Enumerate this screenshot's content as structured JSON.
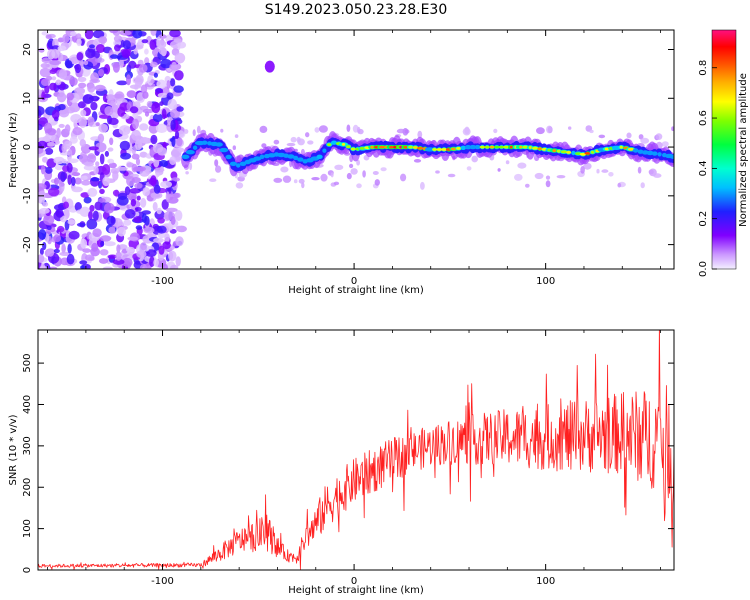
{
  "title": "S149.2023.050.23.28.E30",
  "colors": {
    "snr_line": "#ff2020",
    "ridge_low": "#5500ff",
    "ridge_high": "#ff0000",
    "noise": "#7a2cff"
  },
  "chart_data": [
    {
      "type": "heatmap",
      "xlabel": "Height of straight line (km)",
      "ylabel": "Frequency (Hz)",
      "xlim": [
        -165,
        167
      ],
      "ylim": [
        -25,
        24
      ],
      "xticks": [
        -100,
        0,
        100
      ],
      "xtick_labels": [
        "-100",
        "0",
        "100"
      ],
      "yticks": [
        -20,
        -10,
        0,
        10,
        20
      ],
      "ytick_labels": [
        "-20",
        "-10",
        "0",
        "10",
        "20"
      ],
      "colorbar": {
        "label": "Normalized spectral amplitude",
        "range": [
          0,
          0.95
        ],
        "ticks": [
          0.0,
          0.2,
          0.4,
          0.6,
          0.8
        ],
        "tick_labels": [
          "0.0",
          "0.2",
          "0.4",
          "0.6",
          "0.8"
        ],
        "colormap": "rainbow"
      },
      "ridge": {
        "x": [
          -88,
          -80,
          -70,
          -62,
          -55,
          -48,
          -40,
          -32,
          -25,
          -18,
          -12,
          -5,
          0,
          10,
          20,
          30,
          40,
          50,
          60,
          70,
          80,
          90,
          100,
          110,
          120,
          130,
          140,
          150,
          160,
          167
        ],
        "frequency": [
          -2,
          1,
          0.5,
          -4,
          -3,
          -2,
          -1.5,
          -2,
          -3,
          -2,
          1,
          0.5,
          -0.5,
          0,
          0,
          0,
          -0.5,
          -0.5,
          0,
          0,
          0,
          0,
          -0.5,
          -1,
          -1.5,
          -0.5,
          0,
          -1,
          -1.5,
          -2
        ],
        "amplitude": [
          0.3,
          0.4,
          0.45,
          0.3,
          0.35,
          0.4,
          0.35,
          0.4,
          0.5,
          0.55,
          0.7,
          0.85,
          0.7,
          0.85,
          0.9,
          0.88,
          0.7,
          0.8,
          0.6,
          0.75,
          0.8,
          0.75,
          0.8,
          0.7,
          0.85,
          0.6,
          0.8,
          0.5,
          0.45,
          0.4
        ]
      },
      "noise_region": {
        "x_range": [
          -165,
          -90
        ],
        "freq_range": [
          -25,
          24
        ],
        "amplitude": 0.15
      }
    },
    {
      "type": "line",
      "xlabel": "Height of straight line (km)",
      "ylabel": "SNR (10 * v/v)",
      "xlim": [
        -165,
        167
      ],
      "ylim": [
        0,
        580
      ],
      "xticks": [
        -100,
        0,
        100
      ],
      "xtick_labels": [
        "-100",
        "0",
        "100"
      ],
      "yticks": [
        0,
        100,
        200,
        300,
        400,
        500
      ],
      "ytick_labels": [
        "0",
        "100",
        "200",
        "300",
        "400",
        "500"
      ],
      "envelope": {
        "x": [
          -165,
          -80,
          -70,
          -60,
          -50,
          -45,
          -40,
          -35,
          -30,
          -25,
          -20,
          -15,
          -10,
          0,
          10,
          20,
          30,
          40,
          50,
          60,
          80,
          100,
          120,
          140,
          160,
          167
        ],
        "snr": [
          10,
          12,
          40,
          70,
          85,
          90,
          55,
          35,
          30,
          80,
          110,
          150,
          175,
          215,
          240,
          265,
          285,
          300,
          310,
          315,
          320,
          320,
          325,
          330,
          315,
          300
        ],
        "spread": [
          4,
          5,
          20,
          30,
          40,
          45,
          25,
          15,
          15,
          30,
          45,
          55,
          55,
          55,
          55,
          55,
          50,
          50,
          55,
          60,
          70,
          80,
          90,
          100,
          130,
          150
        ]
      }
    }
  ]
}
